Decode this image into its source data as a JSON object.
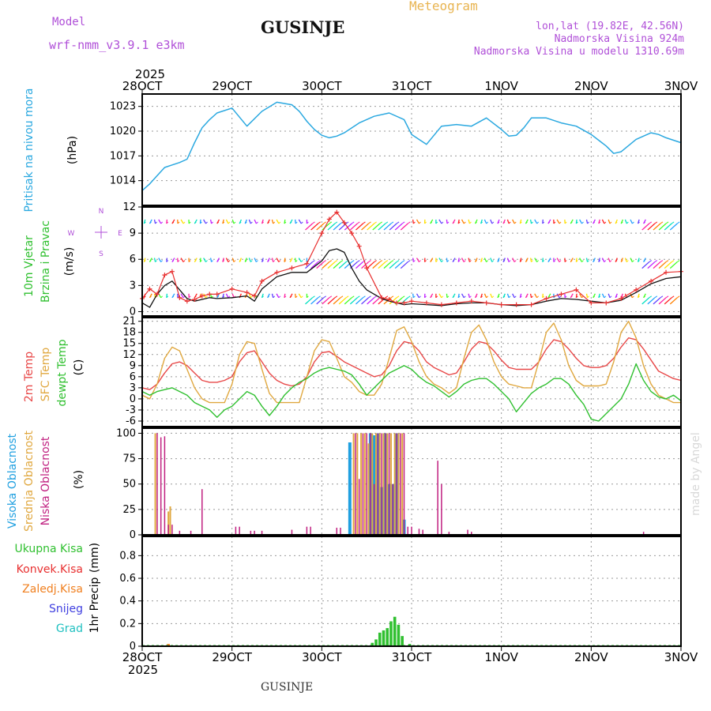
{
  "header": {
    "model_label": "Model",
    "model_name": "wrf-nmm_v3.9.1  e3km",
    "title": "GUSINJE",
    "meteogram_label": "Meteogram",
    "coords": "lon,lat (19.82E, 42.56N)",
    "elevation": "Nadmorska Visina 924m",
    "model_elevation": "Nadmorska Visina u modelu 1310.69m",
    "footer_station": "GUSINJE",
    "watermark": "made by Angel"
  },
  "colors": {
    "pressure": "#2aa8e0",
    "wind_speed": "#111111",
    "wind_gust": "#e83030",
    "temp2m": "#e84848",
    "sfc_temp": "#e0a840",
    "dewpt": "#30c030",
    "high_cloud": "#20a0e0",
    "mid_cloud": "#e0a840",
    "low_cloud": "#c02080",
    "precip_total": "#30c030",
    "precip_conv": "#e83030",
    "precip_frz": "#f08020",
    "snow": "#4040e0",
    "hail": "#20c0c0",
    "purple": "#b050d8"
  },
  "chart_data": {
    "type": "meteogram",
    "x_axis": {
      "top_year": "2025",
      "bottom_year": "2025",
      "range_hours": [
        0,
        144
      ],
      "ticks": [
        "28OCT",
        "29OCT",
        "30OCT",
        "31OCT",
        "1NOV",
        "2NOV",
        "3NOV"
      ]
    },
    "panels": [
      {
        "id": "pressure",
        "type": "line",
        "ylabel_title": "Pritisak na nivou mora",
        "ylabel_unit": "(hPa)",
        "ylim": [
          1011,
          1024.5
        ],
        "yticks": [
          "1014",
          "1017",
          "1020",
          "1023"
        ],
        "x": [
          0,
          2,
          4,
          6,
          8,
          10,
          12,
          14,
          16,
          18,
          20,
          24,
          28,
          32,
          36,
          40,
          42,
          44,
          46,
          48,
          50,
          52,
          54,
          58,
          62,
          66,
          70,
          72,
          76,
          80,
          84,
          88,
          92,
          96,
          98,
          100,
          102,
          104,
          108,
          112,
          116,
          120,
          124,
          126,
          128,
          132,
          136,
          138,
          140,
          144
        ],
        "series": [
          {
            "name": "Pritisak",
            "values": [
              1012.8,
              1013.6,
              1014.6,
              1015.6,
              1015.9,
              1016.2,
              1016.6,
              1018.6,
              1020.4,
              1021.4,
              1022.2,
              1022.8,
              1020.6,
              1022.4,
              1023.5,
              1023.2,
              1022.4,
              1021.2,
              1020.2,
              1019.5,
              1019.2,
              1019.4,
              1019.8,
              1021.0,
              1021.8,
              1022.2,
              1021.4,
              1019.6,
              1018.4,
              1020.6,
              1020.8,
              1020.6,
              1021.6,
              1020.2,
              1019.4,
              1019.5,
              1020.4,
              1021.6,
              1021.6,
              1021.0,
              1020.6,
              1019.6,
              1018.2,
              1017.3,
              1017.5,
              1019.0,
              1019.8,
              1019.6,
              1019.2,
              1018.6
            ]
          }
        ]
      },
      {
        "id": "wind",
        "type": "line",
        "ylabel_title": "10m Vjetar",
        "ylabel_title2": "Brzina i Pravac",
        "ylabel_unit": "(m/s)",
        "legend_compass": [
          "N",
          "W",
          "E",
          "S"
        ],
        "ylim": [
          -0.5,
          12
        ],
        "yticks": [
          "0",
          "3",
          "6",
          "9",
          "12"
        ],
        "x": [
          0,
          2,
          4,
          6,
          8,
          10,
          12,
          14,
          16,
          18,
          20,
          24,
          28,
          30,
          32,
          36,
          40,
          44,
          48,
          50,
          52,
          54,
          56,
          58,
          60,
          64,
          66,
          68,
          70,
          72,
          76,
          80,
          84,
          88,
          92,
          96,
          100,
          104,
          108,
          112,
          116,
          120,
          124,
          128,
          132,
          136,
          140,
          144
        ],
        "series": [
          {
            "name": "Brzina",
            "values": [
              1.0,
              0.5,
              2.0,
              3.0,
              3.5,
              2.5,
              1.5,
              1.2,
              1.4,
              1.6,
              1.5,
              1.6,
              1.8,
              1.2,
              2.6,
              4.0,
              4.5,
              4.5,
              5.8,
              7.0,
              7.2,
              6.8,
              5.0,
              3.5,
              2.5,
              1.5,
              1.2,
              1.0,
              0.8,
              0.9,
              0.8,
              0.7,
              0.9,
              1.0,
              1.0,
              0.8,
              0.7,
              0.8,
              1.2,
              1.5,
              1.4,
              1.2,
              1.0,
              1.3,
              2.2,
              3.2,
              3.8,
              4.0
            ]
          },
          {
            "name": "Udari",
            "values": [
              1.5,
              2.6,
              2.0,
              4.2,
              4.6,
              1.6,
              1.2,
              1.4,
              1.8,
              2.0,
              2.0,
              2.6,
              2.2,
              1.8,
              3.5,
              4.5,
              5.0,
              5.5,
              9.0,
              10.6,
              11.4,
              10.2,
              9.0,
              7.5,
              5.0,
              1.6,
              1.4,
              1.0,
              1.0,
              1.2,
              1.0,
              0.8,
              1.0,
              1.2,
              1.0,
              0.8,
              0.8,
              0.8,
              1.5,
              2.0,
              2.5,
              1.0,
              1.0,
              1.5,
              2.5,
              3.5,
              4.5,
              4.6
            ]
          }
        ],
        "barb_rows": [
          1.6,
          5.7,
          10.1
        ]
      },
      {
        "id": "temperature",
        "type": "line",
        "ylabel_title": "2m Temp",
        "ylabel_title2": "SFC Temp",
        "ylabel_title3": "dewpt Temp",
        "ylabel_unit": "(C)",
        "ylim": [
          -7.5,
          22
        ],
        "yticks": [
          "-6",
          "-3",
          "0",
          "3",
          "6",
          "9",
          "12",
          "15",
          "18",
          "21"
        ],
        "x": [
          0,
          2,
          4,
          6,
          8,
          10,
          12,
          14,
          16,
          18,
          20,
          22,
          24,
          26,
          28,
          30,
          32,
          34,
          36,
          38,
          40,
          42,
          44,
          46,
          48,
          50,
          52,
          54,
          56,
          58,
          60,
          62,
          64,
          66,
          68,
          70,
          72,
          74,
          76,
          78,
          80,
          82,
          84,
          86,
          88,
          90,
          92,
          94,
          96,
          98,
          100,
          102,
          104,
          106,
          108,
          110,
          112,
          114,
          116,
          118,
          120,
          122,
          124,
          126,
          128,
          130,
          132,
          134,
          136,
          138,
          140,
          142,
          144
        ],
        "series": [
          {
            "name": "2m Temp",
            "values": [
              3,
              2.5,
              4,
              7,
              9.5,
              10,
              9,
              7,
              5,
              4.5,
              4.5,
              5,
              6,
              10,
              12.5,
              13,
              10,
              7,
              5,
              4,
              3.5,
              4,
              6,
              10,
              12.5,
              12.8,
              11.5,
              10,
              9,
              8,
              7,
              6,
              6.5,
              9,
              13,
              15.5,
              15,
              13,
              10,
              8.5,
              7.5,
              6.5,
              7,
              10,
              13.5,
              15.5,
              15,
              13,
              10.5,
              8.5,
              8,
              8,
              8,
              10,
              13.5,
              16,
              15.5,
              13.5,
              11,
              9,
              8.5,
              8.5,
              9,
              11,
              14,
              16.5,
              16,
              13.5,
              10.5,
              7.5,
              6.5,
              5.5,
              5
            ]
          },
          {
            "name": "SFC Temp",
            "values": [
              1,
              0,
              4,
              11,
              14,
              13,
              8,
              3,
              0,
              -1,
              -1,
              -1,
              4,
              12,
              15.5,
              15,
              8,
              1.5,
              -1,
              -1,
              -1,
              -1,
              6,
              13,
              16,
              15.5,
              11,
              6,
              4.5,
              2,
              1,
              1,
              4,
              11,
              18.5,
              19.5,
              15.5,
              10,
              6,
              4,
              3,
              1.5,
              3,
              11,
              18,
              20,
              16,
              10,
              6,
              4,
              3.5,
              3,
              3,
              10,
              18,
              20.5,
              16,
              9,
              5,
              3.5,
              3.5,
              3.5,
              4,
              10,
              18,
              21,
              16.5,
              9,
              4,
              1,
              0,
              -1,
              -1
            ]
          },
          {
            "name": "dewpt Temp",
            "values": [
              2,
              1,
              2,
              2.5,
              3,
              2,
              1,
              -1,
              -2,
              -3,
              -5,
              -3,
              -2,
              0,
              2,
              1,
              -2,
              -4.5,
              -2,
              1,
              3,
              4.5,
              5.5,
              7,
              8,
              8.5,
              8,
              7.5,
              6.5,
              4,
              1,
              3,
              5,
              7,
              8,
              9,
              8,
              6,
              4.5,
              3.5,
              2,
              0.5,
              2,
              4,
              5,
              5.5,
              5.5,
              4,
              2,
              0,
              -3.5,
              -1,
              1.5,
              3,
              4,
              5.5,
              5.5,
              4,
              1,
              -1.5,
              -5.5,
              -6,
              -4,
              -2,
              0,
              4,
              9.5,
              5,
              2,
              0.5,
              0,
              1,
              -0.5
            ]
          }
        ]
      },
      {
        "id": "cloud",
        "type": "bar",
        "ylabel_title": "Visoka Oblacnost",
        "ylabel_title2": "Srednja Oblacnost",
        "ylabel_title3": "Niska Oblacnost",
        "ylabel_unit": "(%)",
        "ylim": [
          0,
          105
        ],
        "yticks": [
          "0",
          "25",
          "50",
          "75",
          "100"
        ],
        "series": [
          {
            "name": "Visoka",
            "x": [
              55.5,
              61,
              62,
              63,
              64,
              65,
              66,
              67,
              68,
              70
            ],
            "values": [
              91,
              100,
              98,
              100,
              47,
              100,
              50,
              50,
              100,
              15
            ]
          },
          {
            "name": "Srednja",
            "x": [
              3.5,
              7,
              7.5,
              56.5,
              57.5,
              58.5,
              59.5,
              60.5,
              61.5,
              62.5,
              63.5,
              64.5,
              65.5,
              66.5,
              67.5,
              68.5,
              69.5
            ],
            "values": [
              100,
              23,
              28,
              100,
              100,
              100,
              100,
              90,
              100,
              100,
              100,
              100,
              100,
              100,
              100,
              100,
              100
            ]
          },
          {
            "name": "Niska",
            "x": [
              4,
              5,
              6,
              7,
              8,
              10,
              13,
              16,
              25,
              26,
              29,
              30,
              32,
              40,
              44,
              45,
              52,
              53,
              57,
              58,
              59,
              60,
              61,
              62,
              63,
              64,
              65,
              66,
              67,
              68,
              69,
              70,
              71,
              72,
              74,
              75,
              79,
              80,
              82,
              87,
              88,
              134
            ],
            "values": [
              100,
              96,
              97,
              10,
              10,
              4,
              4,
              45,
              8,
              8,
              4,
              4,
              4,
              5,
              8,
              8,
              7,
              7,
              100,
              55,
              100,
              100,
              100,
              50,
              100,
              100,
              100,
              100,
              50,
              100,
              100,
              100,
              8,
              8,
              6,
              5,
              73,
              50,
              3,
              5,
              3,
              3
            ]
          }
        ]
      },
      {
        "id": "precip",
        "type": "bar",
        "ylabel_title": "1hr Precip",
        "ylabel_unit": "(mm)",
        "legend": [
          "Ukupna Kisa",
          "Konvek.Kisa",
          "Zaledj.Kisa",
          "Snijeg",
          "Grad"
        ],
        "ylim": [
          0,
          0.97
        ],
        "yticks": [
          "0",
          "0.2",
          "0.4",
          "0.6",
          "0.8"
        ],
        "series": [
          {
            "name": "Ukupna Kisa",
            "x": [
              61.5,
              62.5,
              63.5,
              64.5,
              65.5,
              66.5,
              67.5,
              68.5,
              69.5,
              71.5
            ],
            "values": [
              0.03,
              0.06,
              0.12,
              0.14,
              0.16,
              0.22,
              0.26,
              0.19,
              0.09,
              0.02
            ]
          },
          {
            "name": "Zaledj.Kisa",
            "x": [
              7.0
            ],
            "values": [
              0.02
            ]
          }
        ]
      }
    ]
  }
}
